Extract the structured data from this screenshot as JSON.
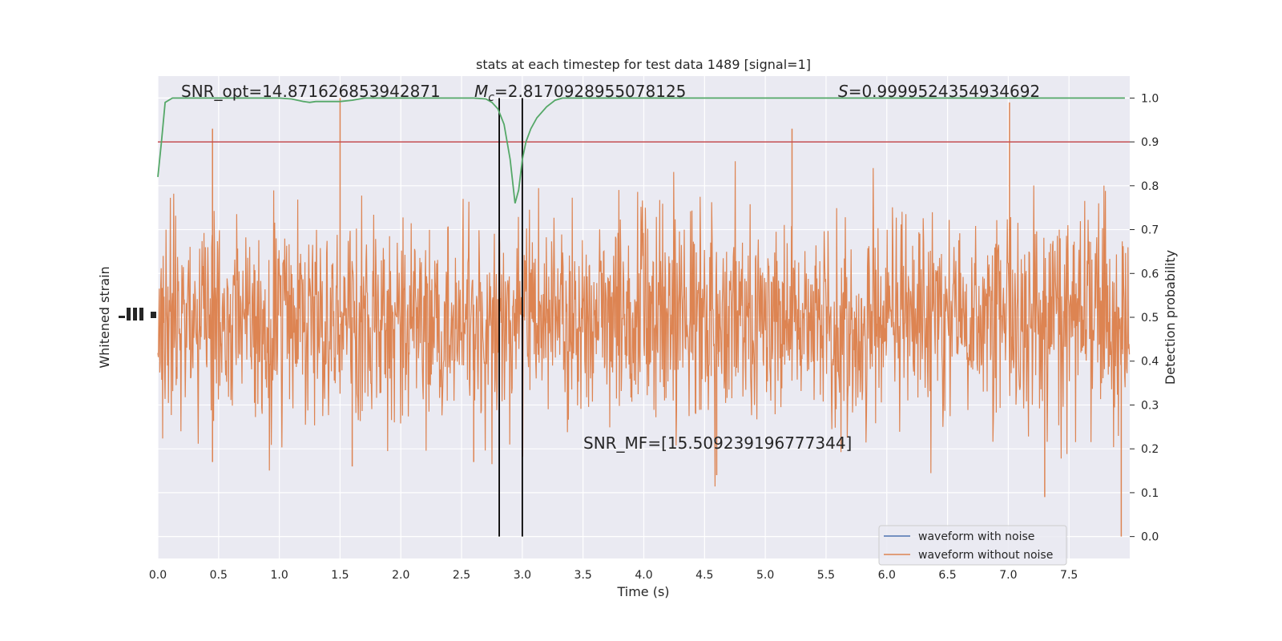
{
  "chart_data": {
    "type": "line",
    "title": "stats at each timestep for test data 1489 [signal=1]",
    "xlabel": "Time (s)",
    "ylabel_left": "Whitened strain",
    "ylabel_right": "Detection probability",
    "xlim": [
      0,
      8
    ],
    "ylim_right": [
      -0.05,
      1.05
    ],
    "x_ticks": [
      0.0,
      0.5,
      1.0,
      1.5,
      2.0,
      2.5,
      3.0,
      3.5,
      4.0,
      4.5,
      5.0,
      5.5,
      6.0,
      6.5,
      7.0,
      7.5
    ],
    "x_tick_labels": [
      "0.0",
      "0.5",
      "1.0",
      "1.5",
      "2.0",
      "2.5",
      "3.0",
      "3.5",
      "4.0",
      "4.5",
      "5.0",
      "5.5",
      "6.0",
      "6.5",
      "7.0",
      "7.5"
    ],
    "y_right_ticks": [
      0.0,
      0.1,
      0.2,
      0.3,
      0.4,
      0.5,
      0.6,
      0.7,
      0.8,
      0.9,
      1.0
    ],
    "y_right_tick_labels": [
      "0.0",
      "0.1",
      "0.2",
      "0.3",
      "0.4",
      "0.5",
      "0.6",
      "0.7",
      "0.8",
      "0.9",
      "1.0"
    ],
    "grid": true,
    "threshold": 0.9,
    "vlines": [
      2.81,
      3.0
    ],
    "annotations": {
      "snr_opt": "SNR_opt=14.871626853942871",
      "mc": "=2.8170928955078125",
      "mc_symbol": "M",
      "mc_sub": "c",
      "s": "=0.9999524354934692",
      "s_symbol": "S",
      "snr_mf": "SNR_MF=[15.509239196777344]"
    },
    "series": [
      {
        "name": "waveform with noise",
        "color": "#4c72b0"
      },
      {
        "name": "waveform without noise",
        "color": "#dd8452"
      },
      {
        "color": "#55a868",
        "x": [
          0.0,
          0.03,
          0.06,
          0.12,
          0.2,
          0.3,
          0.5,
          0.8,
          1.0,
          1.1,
          1.2,
          1.25,
          1.3,
          1.4,
          1.5,
          1.6,
          1.7,
          2.0,
          2.3,
          2.5,
          2.6,
          2.7,
          2.75,
          2.8,
          2.85,
          2.9,
          2.94,
          2.97,
          3.0,
          3.03,
          3.07,
          3.12,
          3.2,
          3.27,
          3.33,
          3.4,
          3.6,
          4.0,
          5.0,
          6.0,
          7.0,
          7.96
        ],
        "y": [
          0.82,
          0.9,
          0.99,
          1.0,
          1.0,
          1.0,
          1.0,
          1.0,
          1.0,
          0.998,
          0.992,
          0.99,
          0.992,
          0.992,
          0.992,
          0.995,
          1.0,
          1.0,
          1.0,
          1.0,
          1.0,
          0.998,
          0.99,
          0.975,
          0.94,
          0.86,
          0.76,
          0.79,
          0.86,
          0.9,
          0.93,
          0.955,
          0.98,
          0.995,
          1.0,
          1.0,
          1.0,
          1.0,
          1.0,
          1.0,
          1.0,
          1.0
        ]
      }
    ],
    "colors": {
      "background": "#eaeaf2",
      "grid": "#ffffff",
      "threshold": "#c44e52",
      "vline": "#000000"
    },
    "legend_position": "lower-right"
  }
}
